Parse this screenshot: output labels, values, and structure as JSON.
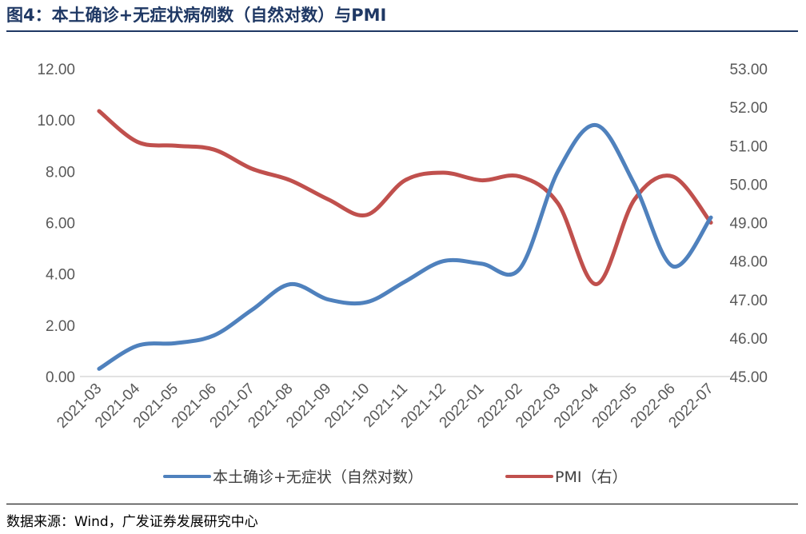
{
  "title": "图4：本土确诊+无症状病例数（自然对数）与PMI",
  "source": "数据来源：Wind，广发证券发展研究中心",
  "chart_data": {
    "type": "line",
    "categories": [
      "2021-03",
      "2021-04",
      "2021-05",
      "2021-06",
      "2021-07",
      "2021-08",
      "2021-09",
      "2021-10",
      "2021-11",
      "2021-12",
      "2022-01",
      "2022-02",
      "2022-03",
      "2022-04",
      "2022-05",
      "2022-06",
      "2022-07"
    ],
    "y_left": {
      "ylim": [
        0,
        12
      ],
      "ticks": [
        "0.00",
        "2.00",
        "4.00",
        "6.00",
        "8.00",
        "10.00",
        "12.00"
      ]
    },
    "y_right": {
      "ylim": [
        45,
        53
      ],
      "ticks": [
        "45.00",
        "46.00",
        "47.00",
        "48.00",
        "49.00",
        "50.00",
        "51.00",
        "52.00",
        "53.00"
      ]
    },
    "series": [
      {
        "name": "本土确诊+无症状（自然对数）",
        "axis": "left",
        "color": "#4f81bd",
        "values": [
          0.3,
          1.2,
          1.3,
          1.6,
          2.6,
          3.6,
          3.0,
          2.9,
          3.7,
          4.5,
          4.4,
          4.2,
          8.0,
          9.8,
          7.5,
          4.3,
          6.2
        ]
      },
      {
        "name": "PMI（右）",
        "axis": "right",
        "color": "#c0504d",
        "values": [
          51.9,
          51.1,
          51.0,
          50.9,
          50.4,
          50.1,
          49.6,
          49.2,
          50.1,
          50.3,
          50.1,
          50.2,
          49.5,
          47.4,
          49.6,
          50.2,
          49.0
        ]
      }
    ],
    "legend": "bottom",
    "grid": false
  }
}
